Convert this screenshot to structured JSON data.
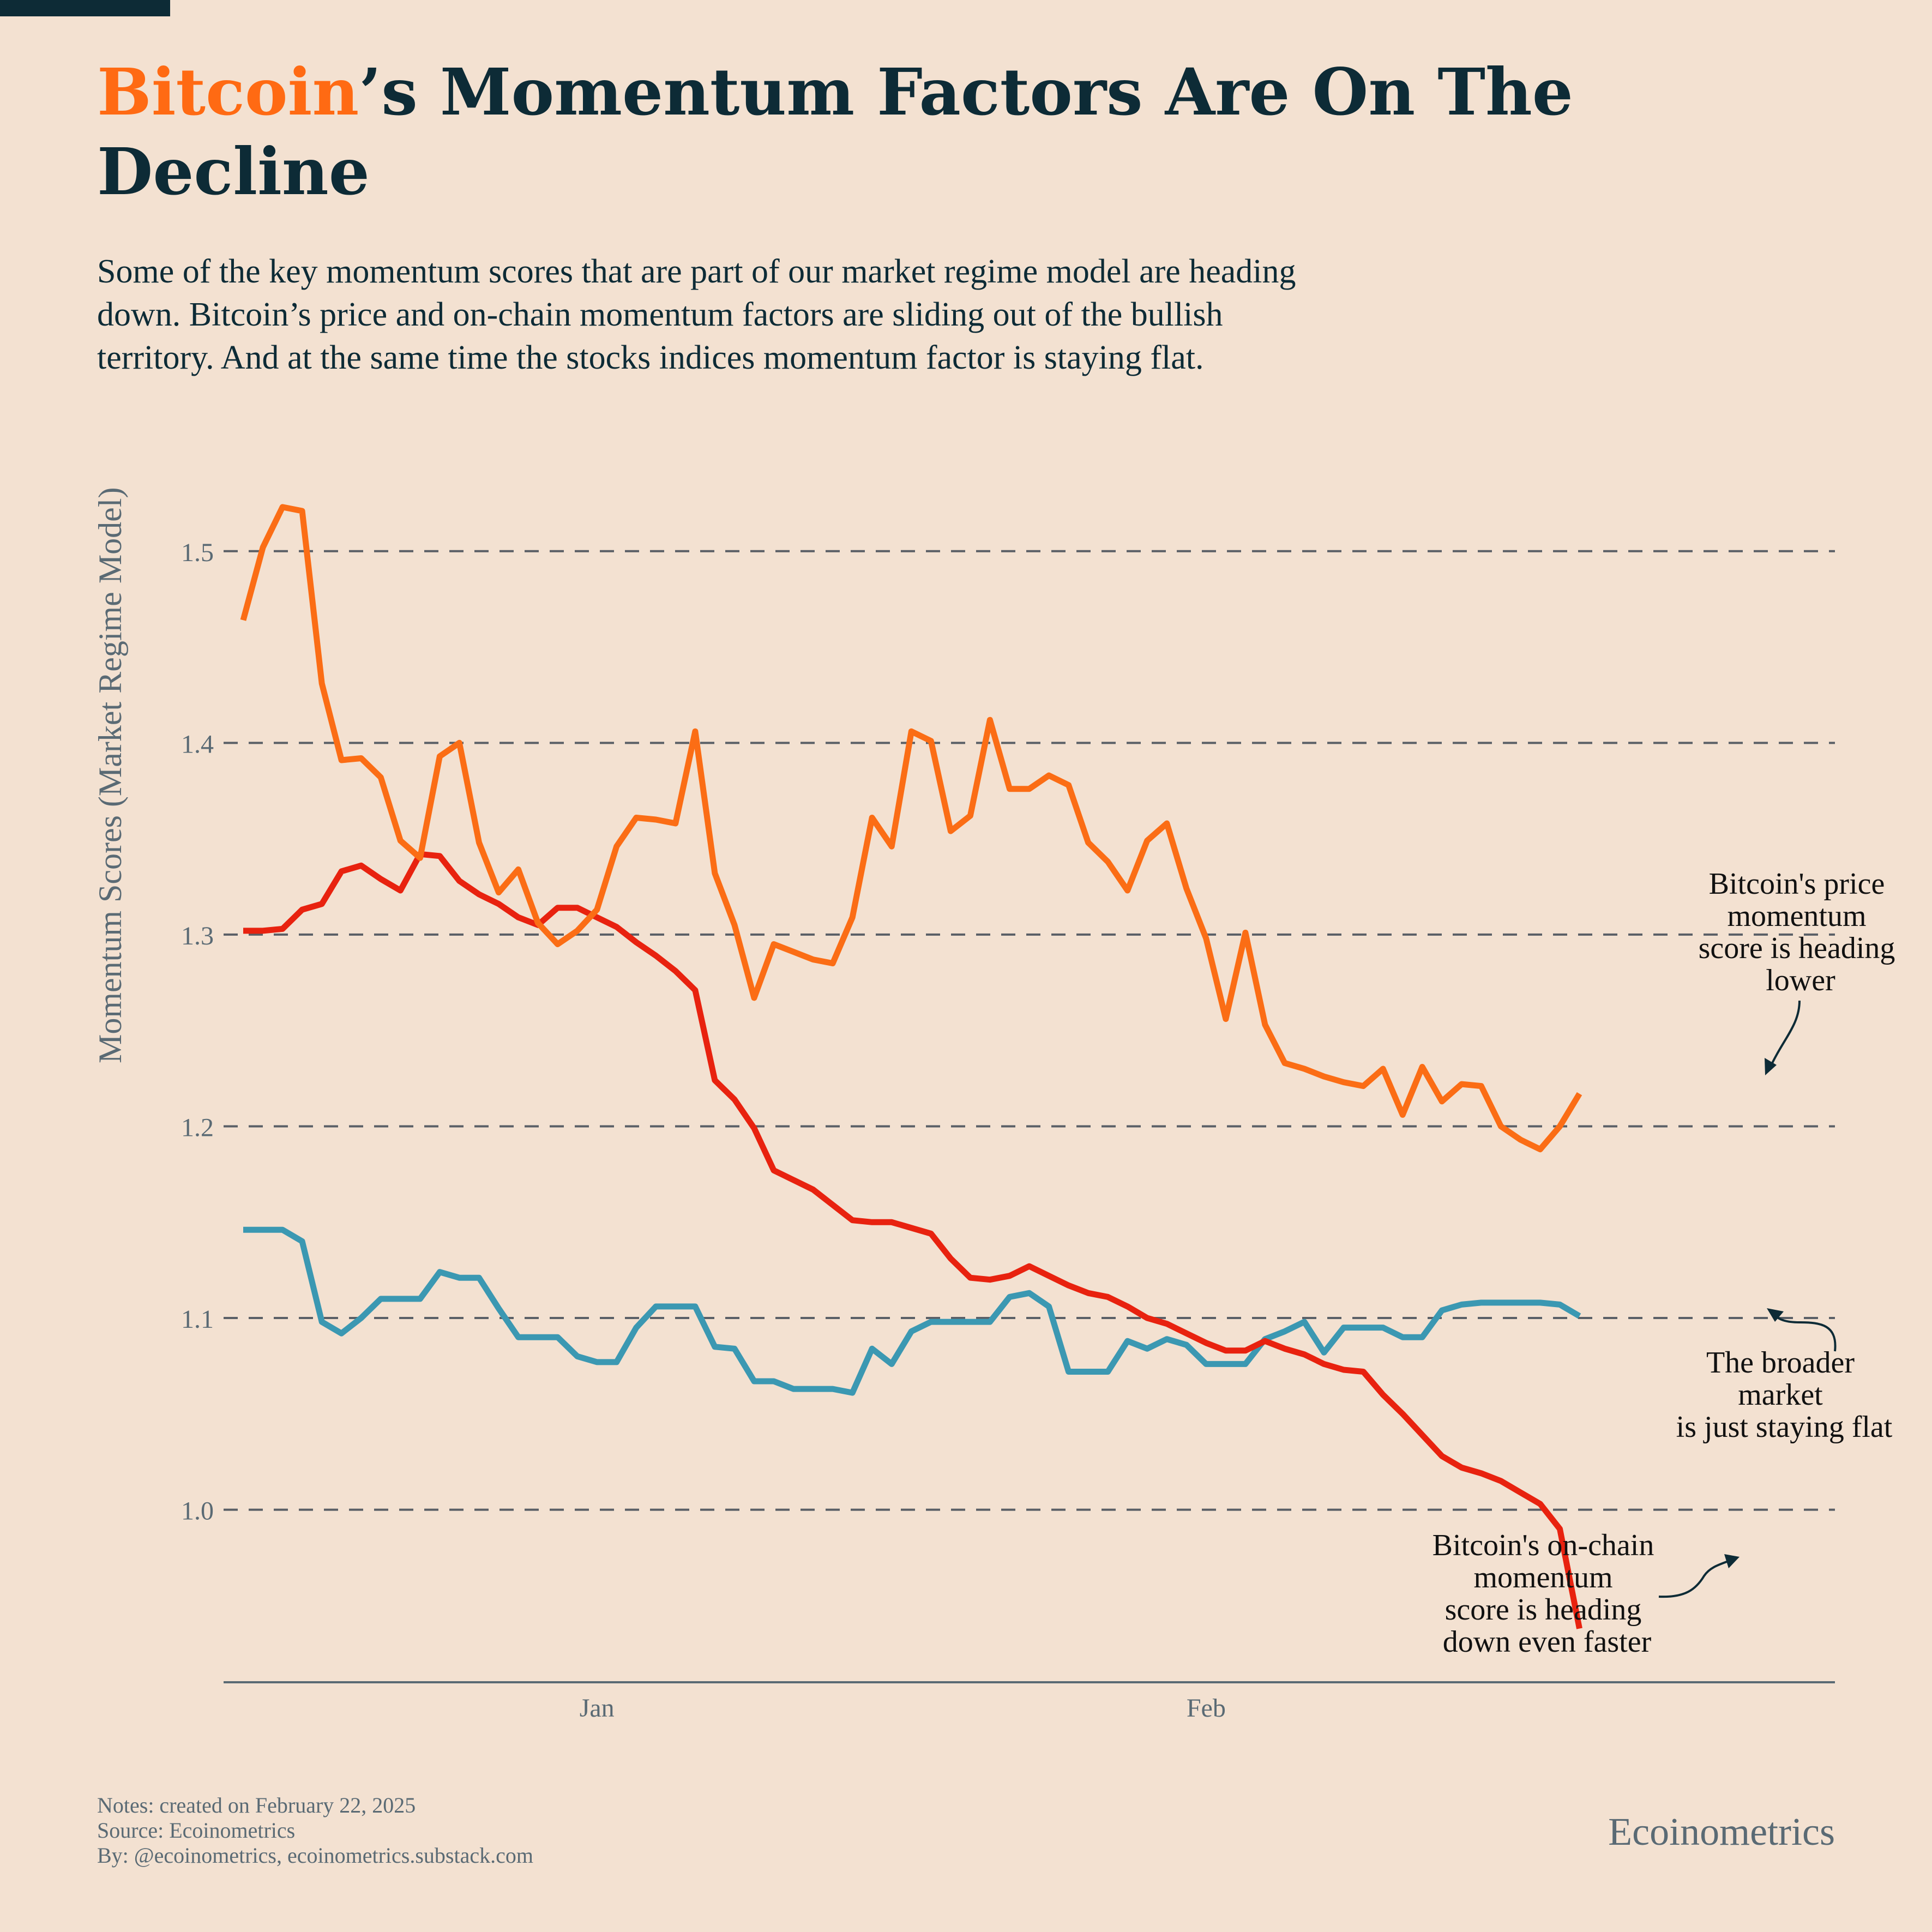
{
  "header": {
    "title_highlight": "Bitcoin",
    "title_line1_rest": "’s Momentum Factors Are On The",
    "title_line2": "Decline",
    "subtitle_lines": [
      "Some of the key momentum scores that are part of our market regime model are heading",
      "down. Bitcoin’s price and on-chain momentum factors are sliding out of the bullish",
      "territory. And at the same time the stocks indices momentum factor is staying flat."
    ]
  },
  "colors": {
    "background": "#f3e1d1",
    "title": "#0d2b36",
    "accent": "#ff6a13",
    "price_momentum": "#fb6d15",
    "onchain_momentum": "#e8220f",
    "broader_market": "#3b98b2",
    "axis_text": "#5a6a74",
    "grid": "#5a5f66"
  },
  "chart_data": {
    "type": "line",
    "title": "Bitcoin’s Momentum Factors Are On The Decline",
    "ylabel": "Momentum Scores (Market Regime Model)",
    "xlabel": "",
    "ylim": [
      0.91,
      1.55
    ],
    "x_range": [
      -19,
      63
    ],
    "yticks": [
      1.0,
      1.1,
      1.2,
      1.3,
      1.4,
      1.5
    ],
    "ytick_labels": [
      "1.0",
      "1.1",
      "1.2",
      "1.3",
      "1.4",
      "1.5"
    ],
    "xticks": [
      {
        "day": 0,
        "label": "Jan"
      },
      {
        "day": 31,
        "label": "Feb"
      }
    ],
    "grid": "horizontal-dashed",
    "x_start_day": -18,
    "series": [
      {
        "name": "Bitcoin's price momentum score",
        "color": "#fb6d15",
        "values": [
          1.464,
          1.502,
          1.523,
          1.521,
          1.431,
          1.391,
          1.392,
          1.382,
          1.349,
          1.34,
          1.393,
          1.4,
          1.348,
          1.322,
          1.334,
          1.306,
          1.295,
          1.302,
          1.313,
          1.346,
          1.361,
          1.36,
          1.358,
          1.406,
          1.332,
          1.305,
          1.267,
          1.295,
          1.291,
          1.287,
          1.285,
          1.309,
          1.361,
          1.346,
          1.406,
          1.401,
          1.354,
          1.362,
          1.412,
          1.376,
          1.376,
          1.383,
          1.378,
          1.348,
          1.338,
          1.323,
          1.349,
          1.358,
          1.324,
          1.298,
          1.256,
          1.301,
          1.253,
          1.233,
          1.23,
          1.226,
          1.223,
          1.221,
          1.23,
          1.206,
          1.231,
          1.213,
          1.222,
          1.221,
          1.2,
          1.193,
          1.188,
          1.2,
          1.217
        ]
      },
      {
        "name": "Bitcoin's on-chain momentum score",
        "color": "#e8220f",
        "values": [
          1.302,
          1.302,
          1.303,
          1.313,
          1.316,
          1.333,
          1.336,
          1.329,
          1.323,
          1.342,
          1.341,
          1.328,
          1.321,
          1.316,
          1.309,
          1.305,
          1.314,
          1.314,
          1.309,
          1.304,
          1.296,
          1.289,
          1.281,
          1.271,
          1.224,
          1.214,
          1.199,
          1.177,
          1.172,
          1.167,
          1.159,
          1.151,
          1.15,
          1.15,
          1.147,
          1.144,
          1.131,
          1.121,
          1.12,
          1.122,
          1.127,
          1.122,
          1.117,
          1.113,
          1.111,
          1.106,
          1.1,
          1.097,
          1.092,
          1.087,
          1.083,
          1.083,
          1.088,
          1.084,
          1.081,
          1.076,
          1.073,
          1.072,
          1.06,
          1.05,
          1.039,
          1.028,
          1.022,
          1.019,
          1.015,
          1.009,
          1.003,
          0.99,
          0.938
        ]
      },
      {
        "name": "The broader market",
        "color": "#3b98b2",
        "values": [
          1.146,
          1.146,
          1.146,
          1.14,
          1.098,
          1.092,
          1.1,
          1.11,
          1.11,
          1.11,
          1.124,
          1.121,
          1.121,
          1.105,
          1.09,
          1.09,
          1.09,
          1.08,
          1.077,
          1.077,
          1.095,
          1.106,
          1.106,
          1.106,
          1.085,
          1.084,
          1.067,
          1.067,
          1.063,
          1.063,
          1.063,
          1.061,
          1.084,
          1.076,
          1.093,
          1.098,
          1.098,
          1.098,
          1.098,
          1.111,
          1.113,
          1.106,
          1.072,
          1.072,
          1.072,
          1.088,
          1.084,
          1.089,
          1.086,
          1.076,
          1.076,
          1.076,
          1.089,
          1.093,
          1.098,
          1.082,
          1.095,
          1.095,
          1.095,
          1.09,
          1.09,
          1.104,
          1.107,
          1.108,
          1.108,
          1.108,
          1.108,
          1.107,
          1.101
        ]
      }
    ],
    "annotations": [
      {
        "id": "price",
        "lines": [
          "Bitcoin's price",
          "momentum",
          "score is heading",
          "lower"
        ]
      },
      {
        "id": "market",
        "lines": [
          "The broader",
          "market",
          "is just staying flat"
        ]
      },
      {
        "id": "onchain",
        "lines": [
          "Bitcoin's on-chain",
          "momentum",
          "score is heading",
          "down even faster"
        ]
      }
    ]
  },
  "footer": {
    "notes": "Notes: created on February 22, 2025",
    "source": "Source: Ecoinometrics",
    "by": "By: @ecoinometrics, ecoinometrics.substack.com",
    "brand": "Ecoinometrics"
  }
}
